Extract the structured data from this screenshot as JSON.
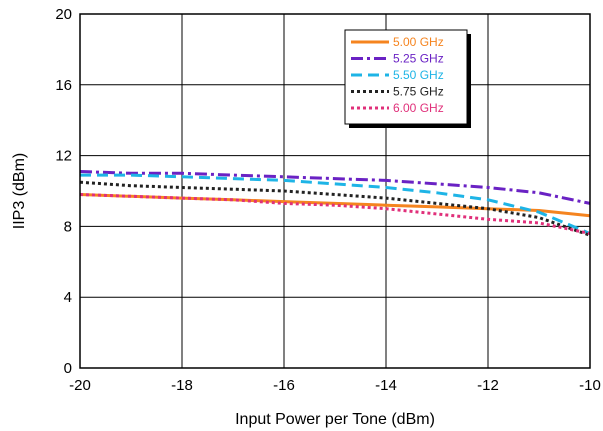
{
  "chart_data": {
    "type": "line",
    "title": "",
    "xlabel": "Input Power per Tone (dBm)",
    "ylabel": "IIP3 (dBm)",
    "xlim": [
      -20,
      -10
    ],
    "ylim": [
      0,
      20
    ],
    "xticks": [
      -20,
      -18,
      -16,
      -14,
      -12,
      -10
    ],
    "yticks": [
      0,
      4,
      8,
      12,
      16,
      20
    ],
    "xtick_labels": [
      "-20",
      "-18",
      "-16",
      "-14",
      "-12",
      "-10"
    ],
    "ytick_labels": [
      "0",
      "4",
      "8",
      "12",
      "16",
      "20"
    ],
    "grid": true,
    "legend_position": "top-right",
    "series": [
      {
        "name": "5.00 GHz",
        "color": "#f5841f",
        "dash": "solid",
        "x": [
          -20,
          -19,
          -18,
          -17,
          -16,
          -15,
          -14,
          -13,
          -12,
          -11,
          -10
        ],
        "y": [
          9.8,
          9.7,
          9.6,
          9.5,
          9.4,
          9.3,
          9.2,
          9.1,
          9.0,
          8.9,
          8.6
        ]
      },
      {
        "name": "5.25 GHz",
        "color": "#6a22c4",
        "dash": "dashdot",
        "x": [
          -20,
          -19,
          -18,
          -17,
          -16,
          -15,
          -14,
          -13,
          -12,
          -11,
          -10
        ],
        "y": [
          11.1,
          11.0,
          11.0,
          10.9,
          10.8,
          10.7,
          10.6,
          10.4,
          10.2,
          9.9,
          9.3
        ]
      },
      {
        "name": "5.50 GHz",
        "color": "#1eb4e6",
        "dash": "dash",
        "x": [
          -20,
          -19,
          -18,
          -17,
          -16,
          -15,
          -14,
          -13,
          -12,
          -11,
          -10
        ],
        "y": [
          10.9,
          10.9,
          10.8,
          10.7,
          10.6,
          10.4,
          10.2,
          9.9,
          9.5,
          8.8,
          7.6
        ]
      },
      {
        "name": "5.75 GHz",
        "color": "#222222",
        "dash": "dot",
        "x": [
          -20,
          -19,
          -18,
          -17,
          -16,
          -15,
          -14,
          -13,
          -12,
          -11,
          -10
        ],
        "y": [
          10.5,
          10.3,
          10.2,
          10.1,
          10.0,
          9.8,
          9.6,
          9.3,
          9.0,
          8.5,
          7.5
        ]
      },
      {
        "name": "6.00 GHz",
        "color": "#e0307a",
        "dash": "dot",
        "x": [
          -20,
          -19,
          -18,
          -17,
          -16,
          -15,
          -14,
          -13,
          -12,
          -11,
          -10
        ],
        "y": [
          9.8,
          9.7,
          9.6,
          9.5,
          9.3,
          9.2,
          9.0,
          8.7,
          8.4,
          8.2,
          7.6
        ]
      }
    ]
  }
}
